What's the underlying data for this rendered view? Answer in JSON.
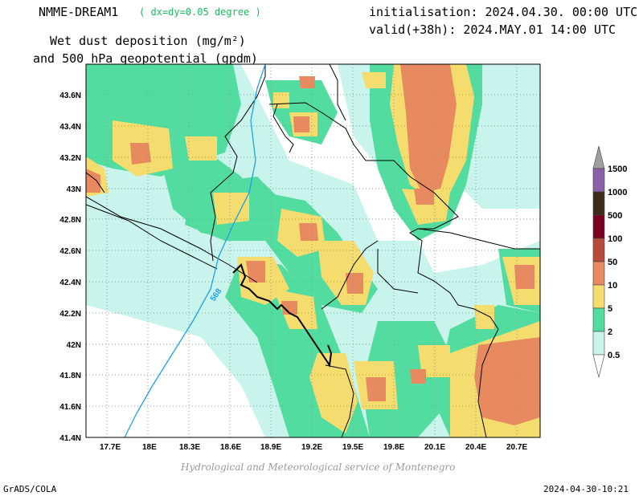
{
  "header": {
    "model": "NMME-DREAM1",
    "resolution": "( dx=dy=0.05 degree )",
    "initialisation": "initialisation: 2024.04.30. 00:00 UTC",
    "valid": "valid(+38h): 2024.MAY.01 14:00 UTC",
    "variable_line1": "Wet dust deposition (mg/m²)",
    "variable_line2": "and 500 hPa geopotential (gpdm)"
  },
  "axes": {
    "lon_ticks": [
      "17.7E",
      "18E",
      "18.3E",
      "18.6E",
      "18.9E",
      "19.2E",
      "19.5E",
      "19.8E",
      "20.1E",
      "20.4E",
      "20.7E"
    ],
    "lat_ticks": [
      "43.6N",
      "43.4N",
      "43.2N",
      "43N",
      "42.8N",
      "42.6N",
      "42.4N",
      "42.2N",
      "42N",
      "41.8N",
      "41.6N",
      "41.4N"
    ]
  },
  "contour": {
    "label": "568"
  },
  "legend": {
    "levels": [
      {
        "label": "1500",
        "color": "#a0a0a0"
      },
      {
        "label": "1000",
        "color": "#8a60a8"
      },
      {
        "label": "500",
        "color": "#3c2a1a"
      },
      {
        "label": "100",
        "color": "#7a0020"
      },
      {
        "label": "50",
        "color": "#b84a3a"
      },
      {
        "label": "10",
        "color": "#e88a60"
      },
      {
        "label": "5",
        "color": "#f5dc6e"
      },
      {
        "label": "2",
        "color": "#52dca0"
      },
      {
        "label": "0.5",
        "color": "#c8f4ec"
      }
    ]
  },
  "credit": "Hydrological and Meteorological service of Montenegro",
  "footer": {
    "left": "GrADS/COLA",
    "right": "2024-04-30-10:21"
  }
}
